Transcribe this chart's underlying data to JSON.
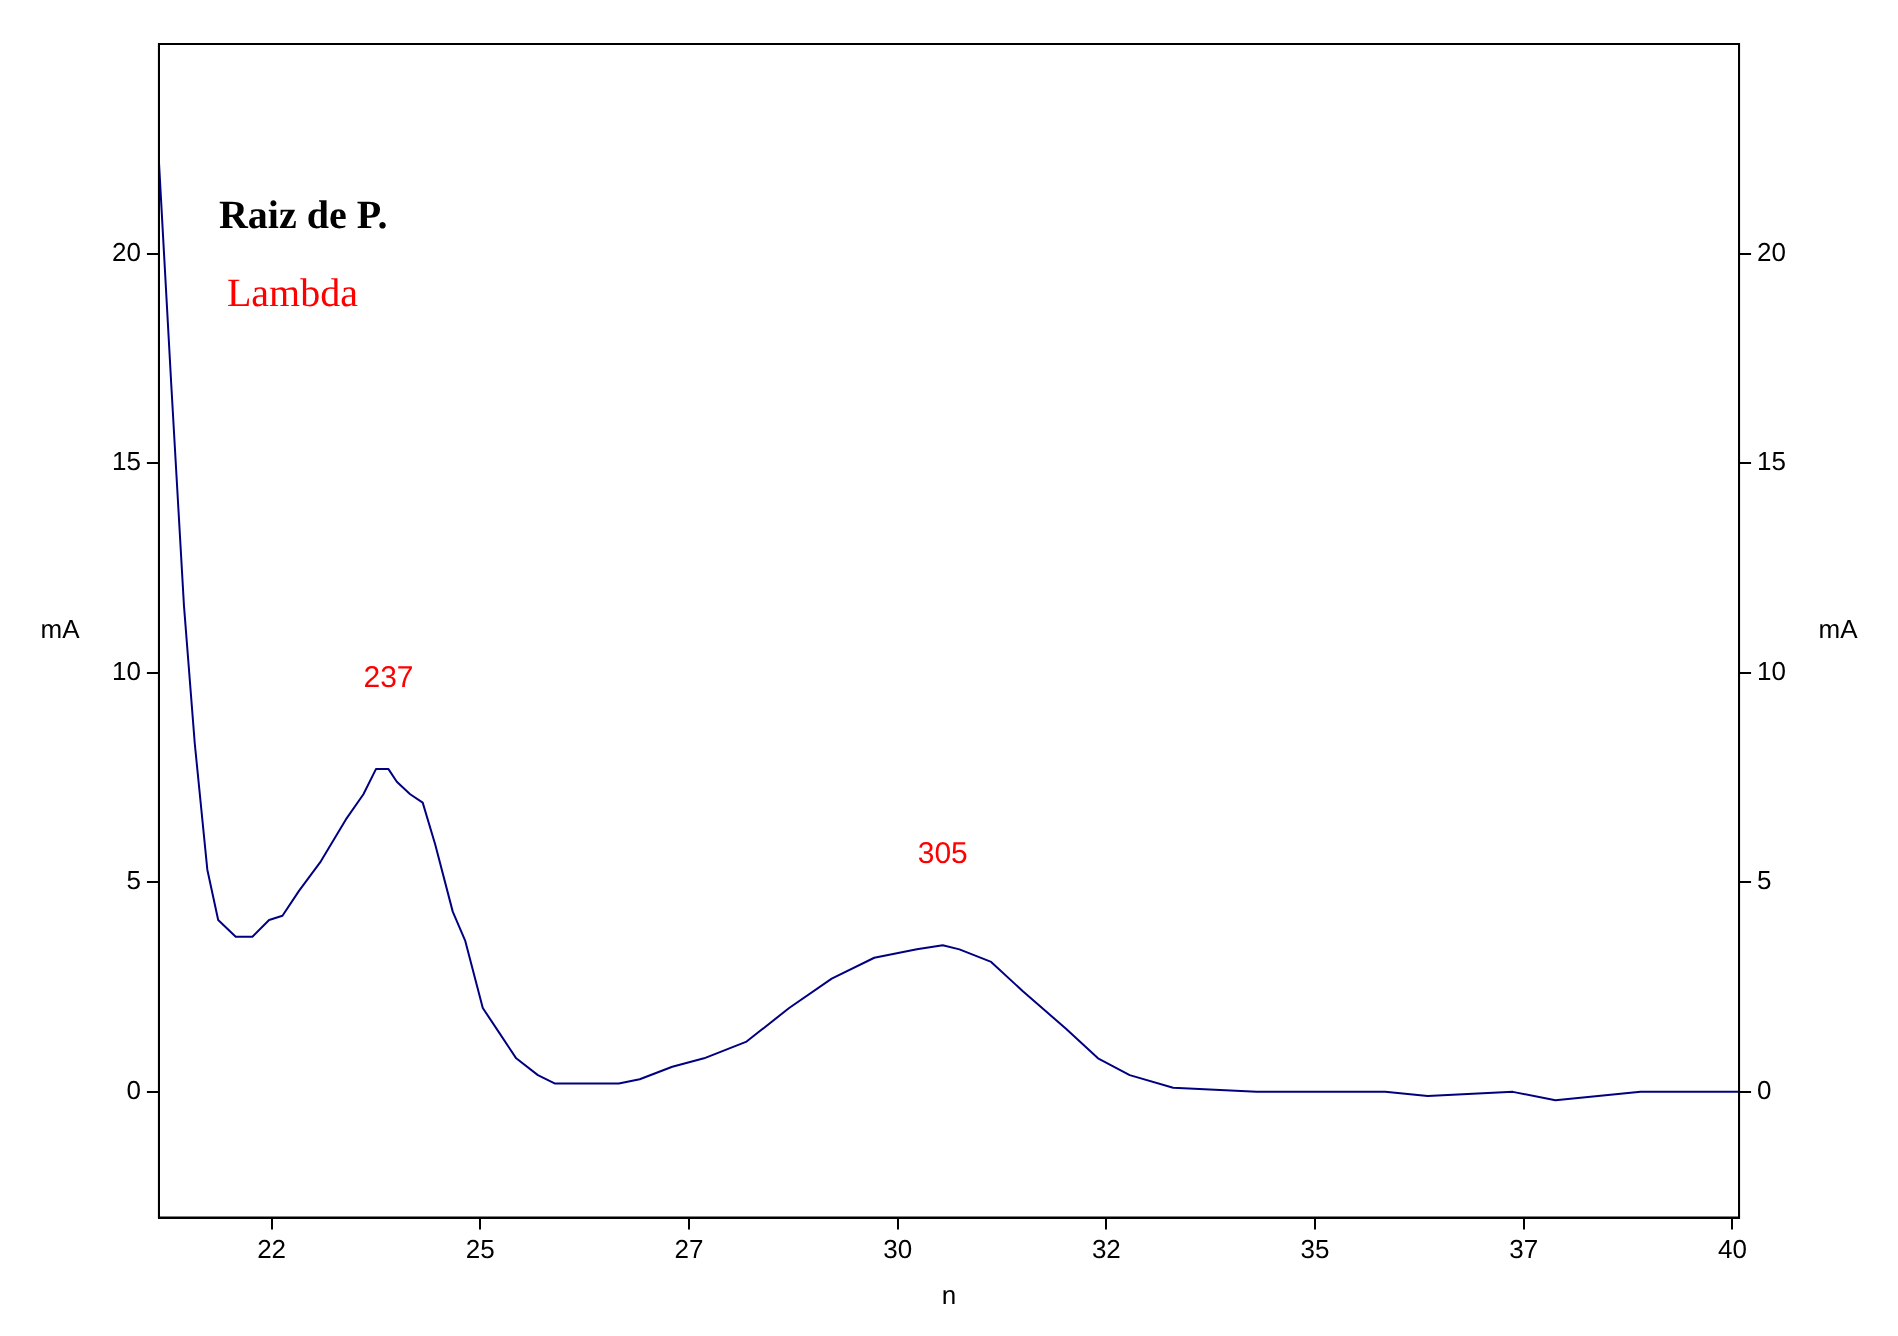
{
  "chart_data": {
    "type": "line",
    "title": "Raiz de P.",
    "subtitle": "Lambda",
    "xlabel": "n",
    "ylabel": "mA",
    "y2label": "mA",
    "x": [
      21.15,
      21.3,
      21.45,
      21.58,
      21.73,
      21.86,
      22.07,
      22.27,
      22.47,
      22.63,
      22.83,
      23.09,
      23.39,
      23.6,
      23.75,
      23.9,
      24.0,
      24.16,
      24.31,
      24.46,
      24.67,
      24.82,
      25.03,
      25.23,
      25.43,
      25.69,
      25.89,
      26.66,
      26.91,
      27.3,
      27.68,
      28.19,
      28.7,
      29.21,
      29.72,
      30.23,
      30.54,
      30.74,
      31.12,
      31.5,
      32.02,
      32.4,
      32.78,
      33.3,
      34.3,
      35.84,
      36.35,
      37.37,
      37.88,
      38.9,
      40.08
    ],
    "series": [
      {
        "color": "#000080",
        "values": [
          22.2,
          16.8,
          11.6,
          8.3,
          5.3,
          4.1,
          3.7,
          3.7,
          4.1,
          4.2,
          4.8,
          5.5,
          6.5,
          7.1,
          7.7,
          7.7,
          7.4,
          7.1,
          6.9,
          5.9,
          4.3,
          3.6,
          2.0,
          1.4,
          0.8,
          0.4,
          0.2,
          0.2,
          0.3,
          0.6,
          0.8,
          1.2,
          2.0,
          2.7,
          3.2,
          3.4,
          3.5,
          3.4,
          3.1,
          2.4,
          1.5,
          0.8,
          0.4,
          0.1,
          0.0,
          0.0,
          -0.1,
          0.0,
          -0.2,
          0.0,
          0.0
        ]
      }
    ],
    "xlim": [
      21.15,
      40.08
    ],
    "xticks": [
      {
        "value": 22.5,
        "label": "22"
      },
      25,
      {
        "value": 27.5,
        "label": "27"
      },
      30,
      {
        "value": 32.5,
        "label": "32"
      },
      35,
      {
        "value": 37.5,
        "label": "37"
      },
      40
    ],
    "ylim": [
      -3,
      25
    ],
    "yticks": [
      0,
      5,
      10,
      15,
      20
    ],
    "y2lim": [
      -3,
      25
    ],
    "y2ticks": [
      0,
      5,
      10,
      15,
      20
    ],
    "annotations": [
      {
        "text": "237",
        "x": 23.9,
        "y": 7.7
      },
      {
        "text": "305",
        "x": 30.54,
        "y": 3.5
      }
    ],
    "grid": false,
    "legend": false,
    "marker": "none",
    "line_style": "solid"
  }
}
